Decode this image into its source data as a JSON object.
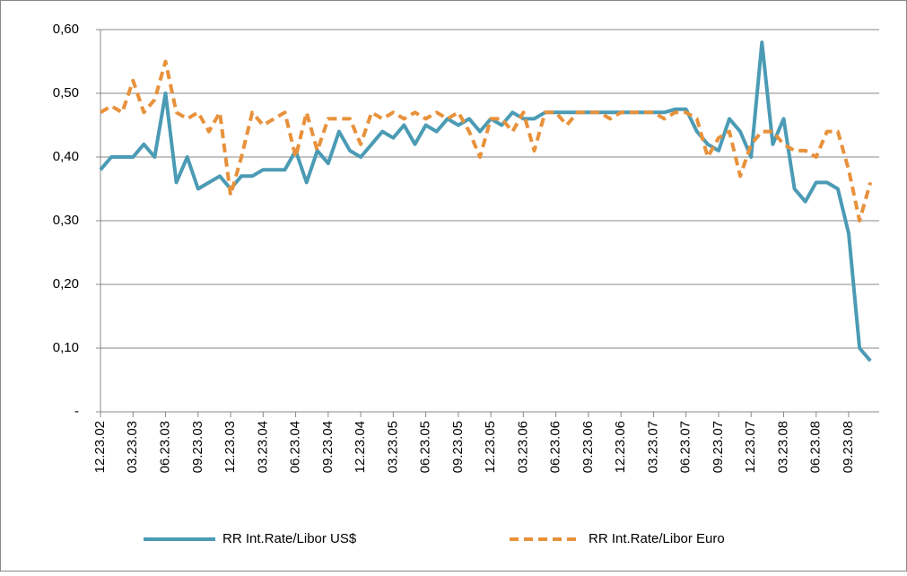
{
  "chart_data": {
    "type": "line",
    "categories": [
      "12.23.02",
      null,
      null,
      "03.23.03",
      null,
      null,
      "06.23.03",
      null,
      null,
      "09.23.03",
      null,
      null,
      "12.23.03",
      null,
      null,
      "03.23.04",
      null,
      null,
      "06.23.04",
      null,
      null,
      "09.23.04",
      null,
      null,
      "12.23.04",
      null,
      null,
      "03.23.05",
      null,
      null,
      "06.23.05",
      null,
      null,
      "09.23.05",
      null,
      null,
      "12.23.05",
      null,
      null,
      "03.23.06",
      null,
      null,
      "06.23.06",
      null,
      null,
      "09.23.06",
      null,
      null,
      "12.23.06",
      null,
      null,
      "03.23.07",
      null,
      null,
      "06.23.07",
      null,
      null,
      "09.23.07",
      null,
      null,
      "12.23.07",
      null,
      null,
      "03.23.08",
      null,
      null,
      "06.23.08",
      null,
      null,
      "09.23.08",
      null,
      null
    ],
    "series": [
      {
        "name": "RR Int.Rate/Libor  US$",
        "color": "#4b9bb5",
        "dashed": false,
        "values": [
          0.38,
          0.4,
          0.4,
          0.4,
          0.42,
          0.4,
          0.5,
          0.36,
          0.4,
          0.35,
          0.36,
          0.37,
          0.35,
          0.37,
          0.37,
          0.38,
          0.38,
          0.38,
          0.41,
          0.36,
          0.41,
          0.39,
          0.44,
          0.41,
          0.4,
          0.42,
          0.44,
          0.43,
          0.45,
          0.42,
          0.45,
          0.44,
          0.46,
          0.45,
          0.46,
          0.44,
          0.46,
          0.45,
          0.47,
          0.46,
          0.46,
          0.47,
          0.47,
          0.47,
          0.47,
          0.47,
          0.47,
          0.47,
          0.47,
          0.47,
          0.47,
          0.47,
          0.47,
          0.475,
          0.475,
          0.44,
          0.42,
          0.41,
          0.46,
          0.44,
          0.4,
          0.58,
          0.42,
          0.46,
          0.35,
          0.33,
          0.36,
          0.36,
          0.35,
          0.28,
          0.1,
          0.08
        ]
      },
      {
        "name": "RR Int.Rate/Libor  Euro",
        "color": "#e8913b",
        "dashed": true,
        "values": [
          0.47,
          0.48,
          0.47,
          0.52,
          0.47,
          0.49,
          0.55,
          0.47,
          0.46,
          0.47,
          0.44,
          0.47,
          0.34,
          0.4,
          0.47,
          0.45,
          0.46,
          0.47,
          0.4,
          0.47,
          0.41,
          0.46,
          0.46,
          0.46,
          0.42,
          0.47,
          0.46,
          0.47,
          0.46,
          0.47,
          0.46,
          0.47,
          0.46,
          0.47,
          0.44,
          0.4,
          0.46,
          0.46,
          0.44,
          0.47,
          0.41,
          0.47,
          0.47,
          0.45,
          0.47,
          0.47,
          0.47,
          0.46,
          0.47,
          0.47,
          0.47,
          0.47,
          0.46,
          0.47,
          0.47,
          0.46,
          0.4,
          0.43,
          0.44,
          0.37,
          0.42,
          0.44,
          0.44,
          0.42,
          0.41,
          0.41,
          0.4,
          0.44,
          0.44,
          0.38,
          0.3,
          0.36
        ]
      }
    ],
    "ylim": [
      0,
      0.6
    ],
    "yticks": [
      {
        "value": 0,
        "label": "-"
      },
      {
        "value": 0.1,
        "label": "0,10"
      },
      {
        "value": 0.2,
        "label": "0,20"
      },
      {
        "value": 0.3,
        "label": "0,30"
      },
      {
        "value": 0.4,
        "label": "0,40"
      },
      {
        "value": 0.5,
        "label": "0,50"
      },
      {
        "value": 0.6,
        "label": "0,60"
      }
    ],
    "grid": true,
    "legend": "bottom"
  }
}
